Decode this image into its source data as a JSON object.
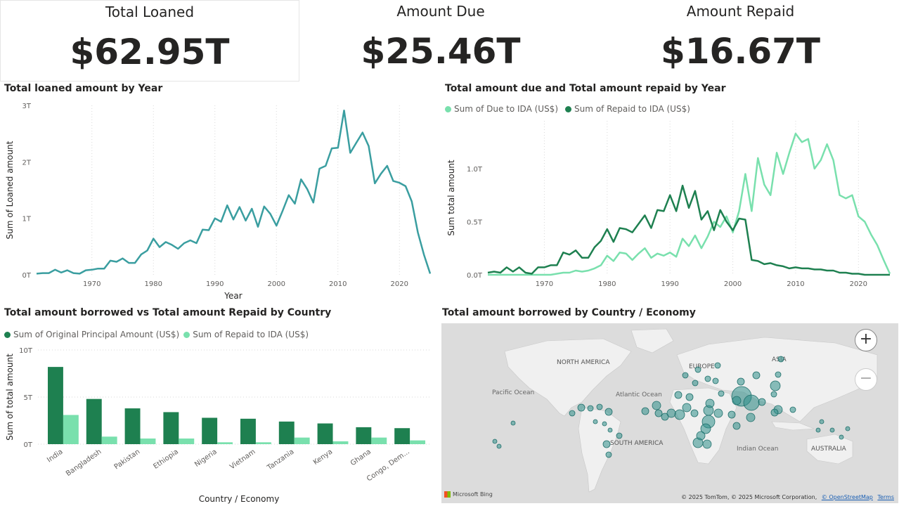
{
  "kpis": [
    {
      "label": "Total Loaned",
      "value": "$62.95T"
    },
    {
      "label": "Amount Due",
      "value": "$25.46T"
    },
    {
      "label": "Amount Repaid",
      "value": "$16.67T"
    }
  ],
  "chart_data": [
    {
      "type": "line",
      "title": "Total loaned amount by Year",
      "xlabel": "Year",
      "ylabel": "Sum of Loaned amount",
      "xlim": [
        1961,
        2025
      ],
      "ylim": [
        0,
        3
      ],
      "xticks": [
        "1970",
        "1980",
        "1990",
        "2000",
        "2010",
        "2020"
      ],
      "yticks": [
        "0T",
        "1T",
        "2T",
        "3T"
      ],
      "color": "#3a9ea0",
      "x": [
        1961,
        1962,
        1963,
        1964,
        1965,
        1966,
        1967,
        1968,
        1969,
        1970,
        1971,
        1972,
        1973,
        1974,
        1975,
        1976,
        1977,
        1978,
        1979,
        1980,
        1981,
        1982,
        1983,
        1984,
        1985,
        1986,
        1987,
        1988,
        1989,
        1990,
        1991,
        1992,
        1993,
        1994,
        1995,
        1996,
        1997,
        1998,
        1999,
        2000,
        2001,
        2002,
        2003,
        2004,
        2005,
        2006,
        2007,
        2008,
        2009,
        2010,
        2011,
        2012,
        2013,
        2014,
        2015,
        2016,
        2017,
        2018,
        2019,
        2020,
        2021,
        2022,
        2023,
        2024,
        2025
      ],
      "values": [
        0.02,
        0.03,
        0.03,
        0.09,
        0.04,
        0.08,
        0.03,
        0.02,
        0.08,
        0.09,
        0.11,
        0.11,
        0.25,
        0.23,
        0.29,
        0.21,
        0.21,
        0.36,
        0.43,
        0.64,
        0.49,
        0.58,
        0.53,
        0.46,
        0.56,
        0.61,
        0.56,
        0.8,
        0.79,
        1.0,
        0.94,
        1.23,
        0.98,
        1.2,
        0.96,
        1.17,
        0.85,
        1.21,
        1.08,
        0.87,
        1.13,
        1.41,
        1.26,
        1.69,
        1.52,
        1.28,
        1.88,
        1.93,
        2.24,
        2.25,
        2.91,
        2.16,
        2.34,
        2.52,
        2.28,
        1.62,
        1.79,
        1.93,
        1.66,
        1.63,
        1.57,
        1.3,
        0.75,
        0.35,
        0.02
      ]
    },
    {
      "type": "line",
      "title": "Total amount due and Total amount repaid by Year",
      "xlabel": "",
      "ylabel": "Sum total amount",
      "xlim": [
        1961,
        2025
      ],
      "ylim": [
        0,
        1.45
      ],
      "xticks": [
        "1970",
        "1980",
        "1990",
        "2000",
        "2010",
        "2020"
      ],
      "yticks": [
        "0.0T",
        "0.5T",
        "1.0T"
      ],
      "x": [
        1961,
        1962,
        1963,
        1964,
        1965,
        1966,
        1967,
        1968,
        1969,
        1970,
        1971,
        1972,
        1973,
        1974,
        1975,
        1976,
        1977,
        1978,
        1979,
        1980,
        1981,
        1982,
        1983,
        1984,
        1985,
        1986,
        1987,
        1988,
        1989,
        1990,
        1991,
        1992,
        1993,
        1994,
        1995,
        1996,
        1997,
        1998,
        1999,
        2000,
        2001,
        2002,
        2003,
        2004,
        2005,
        2006,
        2007,
        2008,
        2009,
        2010,
        2011,
        2012,
        2013,
        2014,
        2015,
        2016,
        2017,
        2018,
        2019,
        2020,
        2021,
        2022,
        2023,
        2024,
        2025
      ],
      "series": [
        {
          "name": "Sum of Due to IDA (US$)",
          "color": "#79e0ad",
          "values": [
            0.0,
            0.0,
            0.0,
            0.0,
            0.0,
            0.0,
            0.0,
            0.0,
            0.0,
            0.0,
            0.0,
            0.01,
            0.02,
            0.02,
            0.04,
            0.03,
            0.04,
            0.06,
            0.09,
            0.18,
            0.13,
            0.21,
            0.2,
            0.14,
            0.2,
            0.25,
            0.16,
            0.2,
            0.18,
            0.21,
            0.17,
            0.34,
            0.27,
            0.37,
            0.25,
            0.36,
            0.5,
            0.45,
            0.55,
            0.4,
            0.6,
            0.95,
            0.6,
            1.1,
            0.85,
            0.75,
            1.15,
            0.95,
            1.15,
            1.33,
            1.25,
            1.28,
            1.0,
            1.08,
            1.23,
            1.08,
            0.75,
            0.72,
            0.75,
            0.55,
            0.5,
            0.38,
            0.28,
            0.14,
            0.01
          ]
        },
        {
          "name": "Sum of Repaid to IDA (US$)",
          "color": "#1e8050",
          "values": [
            0.02,
            0.03,
            0.02,
            0.07,
            0.03,
            0.07,
            0.02,
            0.01,
            0.07,
            0.07,
            0.09,
            0.09,
            0.21,
            0.19,
            0.23,
            0.16,
            0.16,
            0.26,
            0.32,
            0.43,
            0.31,
            0.44,
            0.43,
            0.4,
            0.48,
            0.56,
            0.44,
            0.61,
            0.6,
            0.75,
            0.6,
            0.84,
            0.63,
            0.79,
            0.52,
            0.6,
            0.42,
            0.61,
            0.5,
            0.42,
            0.53,
            0.52,
            0.14,
            0.13,
            0.1,
            0.11,
            0.09,
            0.08,
            0.06,
            0.07,
            0.06,
            0.06,
            0.05,
            0.05,
            0.04,
            0.04,
            0.02,
            0.02,
            0.01,
            0.01,
            0.0,
            0.0,
            0.0,
            0.0,
            0.0
          ]
        }
      ]
    },
    {
      "type": "bar",
      "title": "Total amount borrowed vs Total amount Repaid by Country",
      "xlabel": "Country / Economy",
      "ylabel": "Sum of total amount",
      "ylim": [
        0,
        10
      ],
      "yticks": [
        "0T",
        "5T",
        "10T"
      ],
      "categories": [
        "India",
        "Bangladesh",
        "Pakistan",
        "Ethiopia",
        "Nigeria",
        "Vietnam",
        "Tanzania",
        "Kenya",
        "Ghana",
        "Congo, Dem..."
      ],
      "series": [
        {
          "name": "Sum of Original Principal Amount (US$)",
          "color": "#1e8050",
          "values": [
            8.2,
            4.8,
            3.8,
            3.4,
            2.8,
            2.7,
            2.4,
            2.2,
            1.8,
            1.7
          ]
        },
        {
          "name": "Sum of Repaid to IDA (US$)",
          "color": "#79e0ad",
          "values": [
            3.1,
            0.8,
            0.6,
            0.6,
            0.2,
            0.2,
            0.7,
            0.3,
            0.7,
            0.4
          ]
        }
      ]
    }
  ],
  "map": {
    "title": "Total amount borrowed by Country / Economy",
    "labels": [
      "NORTH AMERICA",
      "EUROPE",
      "ASIA",
      "Pacific Ocean",
      "Atlantic Ocean",
      "SOUTH AMERICA",
      "Indian Ocean",
      "AUSTRALIA"
    ],
    "zoom_in": "+",
    "zoom_out": "−",
    "attribution_brand": "Microsoft Bing",
    "copyright": "© 2025 TomTom, © 2025 Microsoft Corporation,",
    "osm_link": "© OpenStreetMap",
    "terms_link": "Terms",
    "bubble_color": "#2f8f8a"
  }
}
